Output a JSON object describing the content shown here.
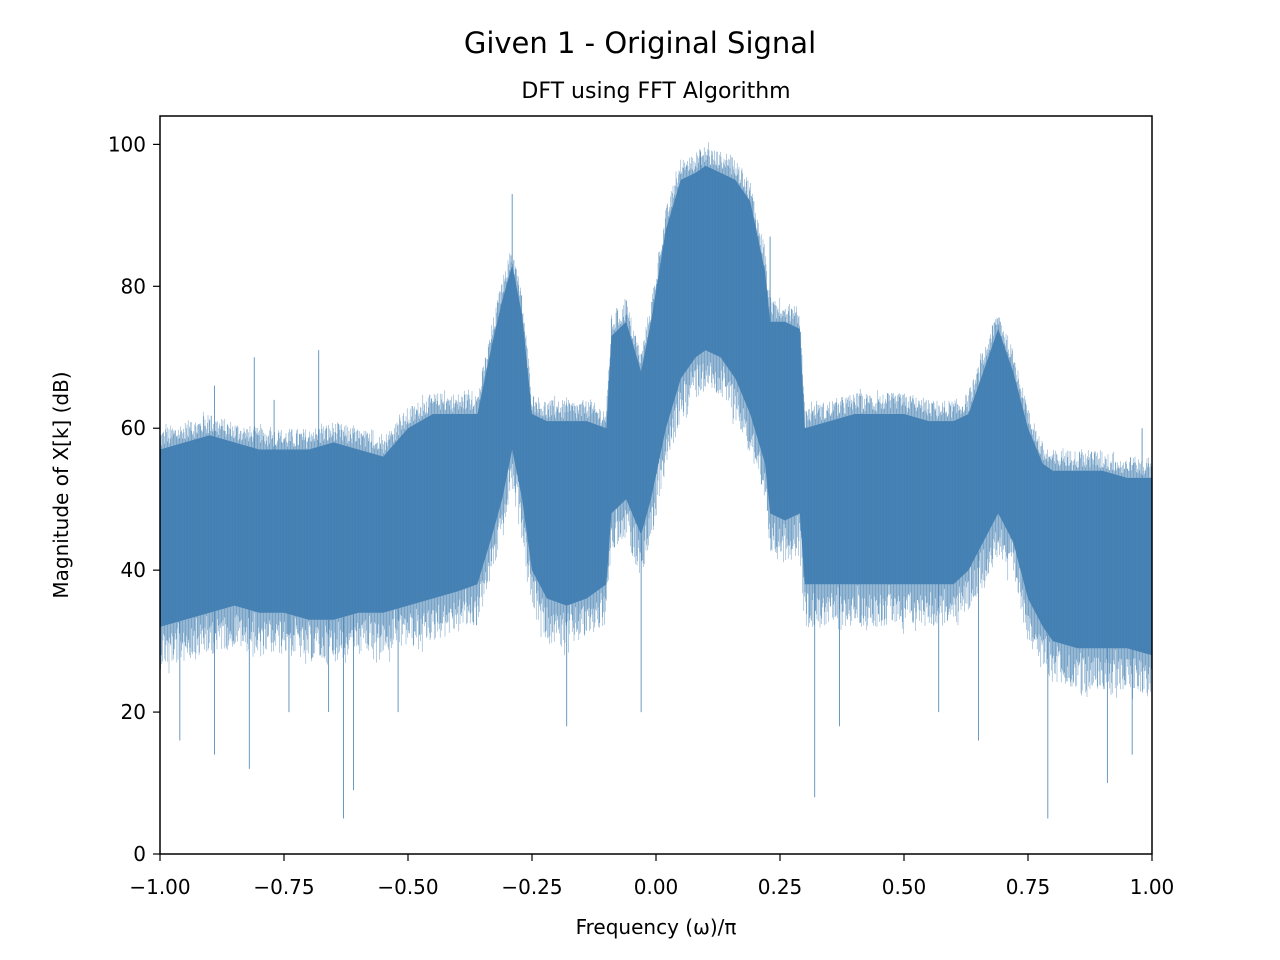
{
  "figure": {
    "suptitle": "Given 1 - Original Signal"
  },
  "chart_data": {
    "type": "line",
    "title": "DFT using FFT Algorithm",
    "xlabel": "Frequency (ω)/π",
    "ylabel": "Magnitude of X[k] (dB)",
    "xlim": [
      -1.0,
      1.0
    ],
    "ylim": [
      0,
      104
    ],
    "xticks": [
      "−1.00",
      "−0.75",
      "−0.50",
      "−0.25",
      "0.00",
      "0.25",
      "0.50",
      "0.75",
      "1.00"
    ],
    "yticks": [
      "0",
      "20",
      "40",
      "60",
      "80",
      "100"
    ],
    "grid": false,
    "legend": "none",
    "series": [
      {
        "color": "#4682b4",
        "envelope": {
          "x": [
            -1.0,
            -0.95,
            -0.9,
            -0.85,
            -0.8,
            -0.75,
            -0.7,
            -0.65,
            -0.6,
            -0.55,
            -0.5,
            -0.45,
            -0.4,
            -0.36,
            -0.33,
            -0.31,
            -0.29,
            -0.27,
            -0.25,
            -0.22,
            -0.18,
            -0.14,
            -0.1,
            -0.09,
            -0.06,
            -0.03,
            -0.01,
            0.02,
            0.05,
            0.08,
            0.1,
            0.13,
            0.16,
            0.19,
            0.22,
            0.23,
            0.26,
            0.29,
            0.3,
            0.35,
            0.4,
            0.45,
            0.5,
            0.55,
            0.6,
            0.63,
            0.66,
            0.69,
            0.72,
            0.75,
            0.78,
            0.8,
            0.85,
            0.9,
            0.95,
            1.0
          ],
          "upper": [
            57,
            58,
            59,
            58,
            57,
            57,
            57,
            58,
            57,
            56,
            60,
            62,
            62,
            62,
            72,
            78,
            83,
            76,
            62,
            61,
            61,
            61,
            60,
            73,
            75,
            68,
            75,
            88,
            95,
            96,
            97,
            96,
            95,
            92,
            82,
            75,
            75,
            74,
            60,
            61,
            62,
            62,
            62,
            61,
            61,
            62,
            68,
            74,
            68,
            60,
            55,
            54,
            54,
            54,
            53,
            53
          ],
          "lower": [
            32,
            33,
            34,
            35,
            34,
            34,
            33,
            33,
            34,
            34,
            35,
            36,
            37,
            38,
            45,
            50,
            57,
            50,
            40,
            36,
            35,
            36,
            38,
            48,
            50,
            45,
            50,
            60,
            67,
            70,
            71,
            70,
            67,
            62,
            55,
            48,
            47,
            48,
            38,
            38,
            38,
            38,
            38,
            38,
            38,
            40,
            44,
            48,
            44,
            36,
            32,
            30,
            29,
            29,
            29,
            28
          ]
        },
        "spikes_down": [
          {
            "x": -0.96,
            "y": 16
          },
          {
            "x": -0.89,
            "y": 14
          },
          {
            "x": -0.82,
            "y": 12
          },
          {
            "x": -0.74,
            "y": 20
          },
          {
            "x": -0.66,
            "y": 20
          },
          {
            "x": -0.63,
            "y": 5
          },
          {
            "x": -0.61,
            "y": 9
          },
          {
            "x": -0.52,
            "y": 20
          },
          {
            "x": -0.18,
            "y": 18
          },
          {
            "x": -0.03,
            "y": 20
          },
          {
            "x": 0.32,
            "y": 8
          },
          {
            "x": 0.37,
            "y": 18
          },
          {
            "x": 0.57,
            "y": 20
          },
          {
            "x": 0.65,
            "y": 16
          },
          {
            "x": 0.79,
            "y": 5
          },
          {
            "x": 0.91,
            "y": 10
          },
          {
            "x": 0.96,
            "y": 14
          },
          {
            "x": 1.0,
            "y": 14
          }
        ],
        "spikes_up": [
          {
            "x": -0.89,
            "y": 66
          },
          {
            "x": -0.81,
            "y": 70
          },
          {
            "x": -0.77,
            "y": 64
          },
          {
            "x": -0.68,
            "y": 71
          },
          {
            "x": -0.29,
            "y": 93
          },
          {
            "x": -0.06,
            "y": 78
          },
          {
            "x": 0.09,
            "y": 99
          },
          {
            "x": 0.2,
            "y": 84
          },
          {
            "x": 0.23,
            "y": 87
          },
          {
            "x": 0.98,
            "y": 60
          }
        ]
      }
    ]
  }
}
